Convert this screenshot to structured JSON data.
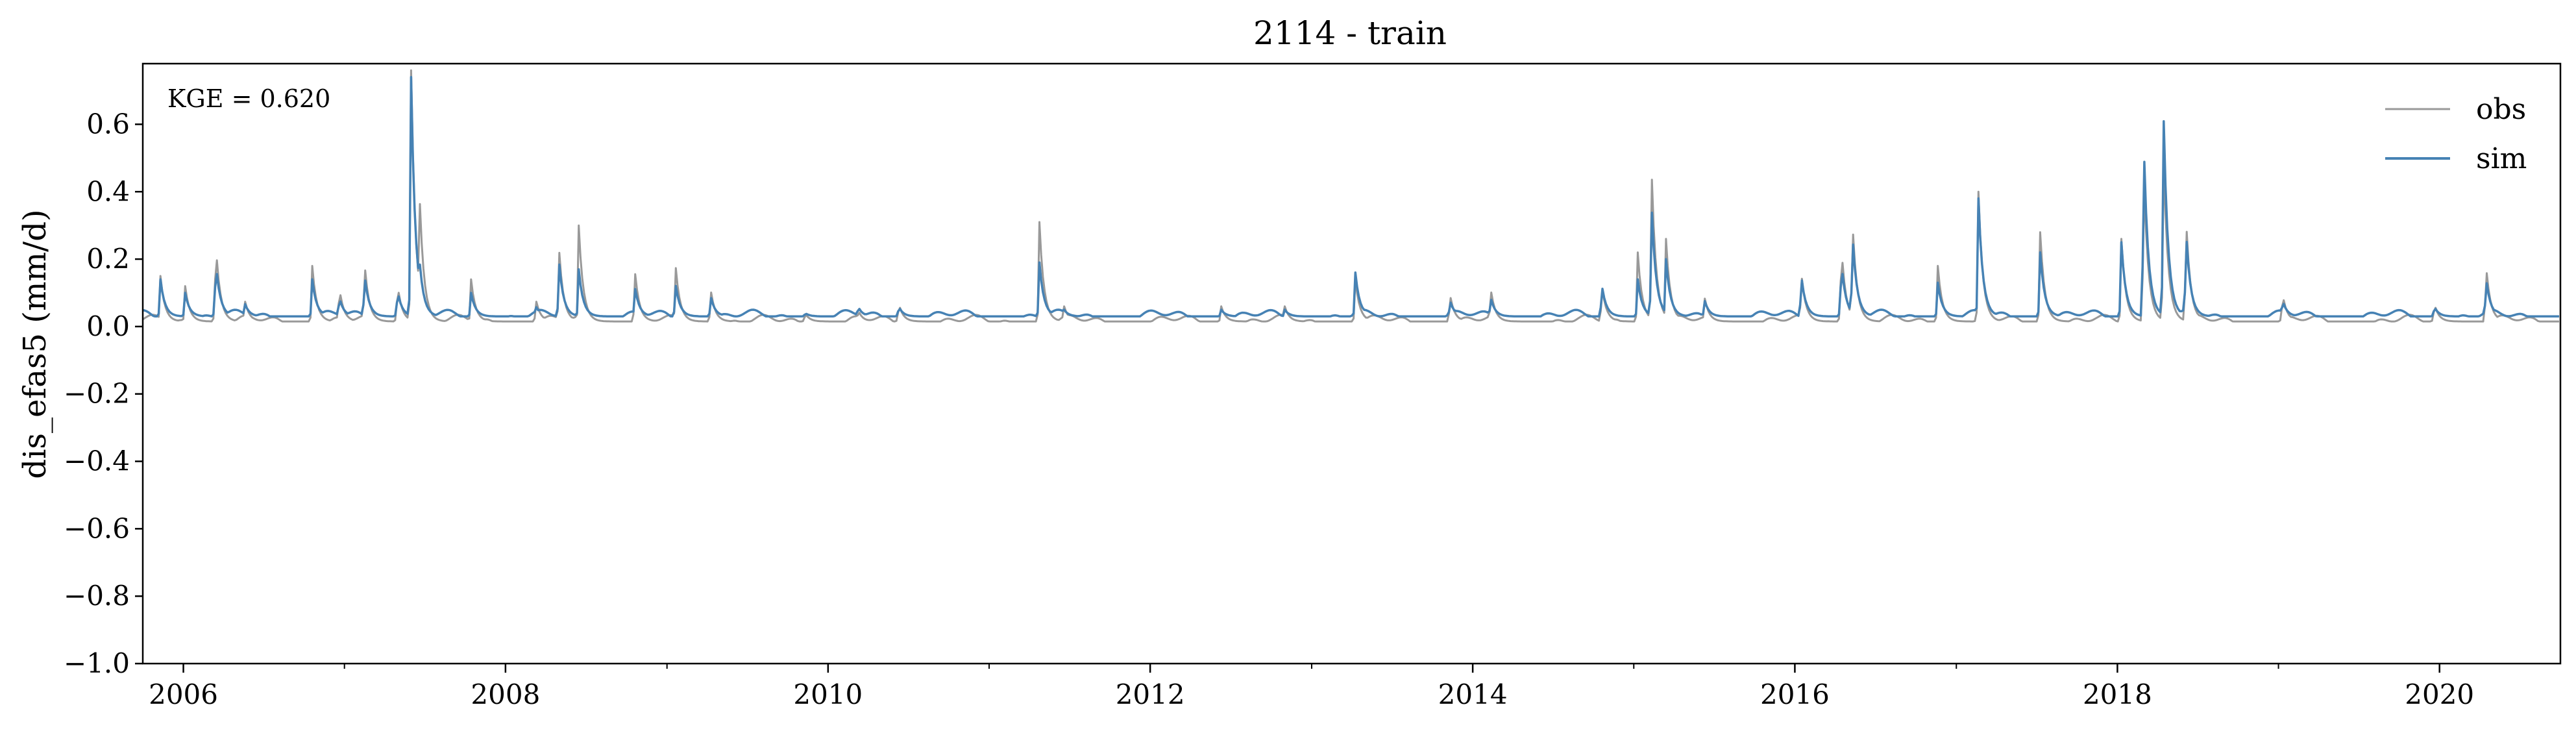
{
  "chart_data": {
    "type": "line",
    "title": "2114 - train",
    "ylabel": "dis_efas5 (mm/d)",
    "xlabel": "",
    "annotation": "KGE = 0.620",
    "ylim": [
      -1.0,
      0.78
    ],
    "xlim": [
      "2005-10-01",
      "2020-10-01"
    ],
    "yticks": [
      -1.0,
      -0.8,
      -0.6,
      -0.4,
      -0.2,
      0.0,
      0.2,
      0.4,
      0.6
    ],
    "ytick_labels": [
      "−1.0",
      "−0.8",
      "−0.6",
      "−0.4",
      "−0.2",
      "0.0",
      "0.2",
      "0.4",
      "0.6"
    ],
    "xticks": [
      2006,
      2008,
      2010,
      2012,
      2014,
      2016,
      2018,
      2020
    ],
    "xtick_labels": [
      "2006",
      "2008",
      "2010",
      "2012",
      "2014",
      "2016",
      "2018",
      "2020"
    ],
    "grid": false,
    "legend_position": "top-right",
    "series": [
      {
        "name": "obs",
        "color": "#999999",
        "baseline": 0.015,
        "peaks": [
          [
            "2005-11-10",
            0.15
          ],
          [
            "2006-01-05",
            0.12
          ],
          [
            "2006-03-15",
            0.26
          ],
          [
            "2006-05-20",
            0.08
          ],
          [
            "2006-10-20",
            0.18
          ],
          [
            "2006-12-20",
            0.12
          ],
          [
            "2007-02-15",
            0.2
          ],
          [
            "2007-05-01",
            0.13
          ],
          [
            "2007-06-01",
            0.76
          ],
          [
            "2007-06-20",
            0.4
          ],
          [
            "2007-10-15",
            0.14
          ],
          [
            "2008-03-10",
            0.08
          ],
          [
            "2008-05-01",
            0.24
          ],
          [
            "2008-06-15",
            0.3
          ],
          [
            "2008-10-20",
            0.17
          ],
          [
            "2009-01-20",
            0.19
          ],
          [
            "2009-04-10",
            0.11
          ],
          [
            "2009-11-10",
            0.04
          ],
          [
            "2010-03-10",
            0.05
          ],
          [
            "2010-06-10",
            0.07
          ],
          [
            "2011-04-25",
            0.31
          ],
          [
            "2011-06-20",
            0.06
          ],
          [
            "2012-06-10",
            0.06
          ],
          [
            "2012-11-01",
            0.06
          ],
          [
            "2013-04-10",
            0.14
          ],
          [
            "2013-11-10",
            0.1
          ],
          [
            "2014-02-10",
            0.12
          ],
          [
            "2014-10-20",
            0.13
          ],
          [
            "2015-01-10",
            0.22
          ],
          [
            "2015-02-10",
            0.48
          ],
          [
            "2015-03-15",
            0.26
          ],
          [
            "2015-06-10",
            0.09
          ],
          [
            "2016-01-15",
            0.17
          ],
          [
            "2016-04-15",
            0.25
          ],
          [
            "2016-05-10",
            0.33
          ],
          [
            "2016-11-20",
            0.18
          ],
          [
            "2017-02-20",
            0.4
          ],
          [
            "2017-07-10",
            0.28
          ],
          [
            "2018-01-10",
            0.26
          ],
          [
            "2018-03-01",
            0.5
          ],
          [
            "2018-04-15",
            0.54
          ],
          [
            "2018-06-05",
            0.34
          ],
          [
            "2019-01-10",
            0.1
          ],
          [
            "2019-12-20",
            0.07
          ],
          [
            "2020-04-15",
            0.19
          ]
        ]
      },
      {
        "name": "sim",
        "color": "#4682b4",
        "baseline": 0.03,
        "peaks": [
          [
            "2005-11-10",
            0.14
          ],
          [
            "2006-01-05",
            0.1
          ],
          [
            "2006-03-15",
            0.2
          ],
          [
            "2006-05-20",
            0.07
          ],
          [
            "2006-10-20",
            0.14
          ],
          [
            "2006-12-20",
            0.09
          ],
          [
            "2007-02-15",
            0.16
          ],
          [
            "2007-05-01",
            0.11
          ],
          [
            "2007-06-01",
            0.74
          ],
          [
            "2007-06-20",
            0.2
          ],
          [
            "2007-10-15",
            0.1
          ],
          [
            "2008-03-10",
            0.06
          ],
          [
            "2008-05-01",
            0.2
          ],
          [
            "2008-06-15",
            0.17
          ],
          [
            "2008-10-20",
            0.12
          ],
          [
            "2009-01-20",
            0.13
          ],
          [
            "2009-04-10",
            0.09
          ],
          [
            "2009-11-10",
            0.04
          ],
          [
            "2010-03-10",
            0.06
          ],
          [
            "2010-06-10",
            0.06
          ],
          [
            "2011-04-25",
            0.19
          ],
          [
            "2011-06-20",
            0.05
          ],
          [
            "2012-06-10",
            0.05
          ],
          [
            "2012-11-01",
            0.05
          ],
          [
            "2013-04-10",
            0.16
          ],
          [
            "2013-11-10",
            0.08
          ],
          [
            "2014-02-10",
            0.09
          ],
          [
            "2014-10-20",
            0.13
          ],
          [
            "2015-01-10",
            0.14
          ],
          [
            "2015-02-10",
            0.37
          ],
          [
            "2015-03-15",
            0.2
          ],
          [
            "2015-06-10",
            0.08
          ],
          [
            "2016-01-15",
            0.16
          ],
          [
            "2016-04-15",
            0.2
          ],
          [
            "2016-05-10",
            0.29
          ],
          [
            "2016-11-20",
            0.13
          ],
          [
            "2017-02-20",
            0.38
          ],
          [
            "2017-07-10",
            0.22
          ],
          [
            "2018-01-10",
            0.25
          ],
          [
            "2018-03-01",
            0.59
          ],
          [
            "2018-04-15",
            0.67
          ],
          [
            "2018-06-05",
            0.3
          ],
          [
            "2019-01-10",
            0.08
          ],
          [
            "2019-12-20",
            0.06
          ],
          [
            "2020-04-15",
            0.15
          ]
        ]
      }
    ]
  }
}
